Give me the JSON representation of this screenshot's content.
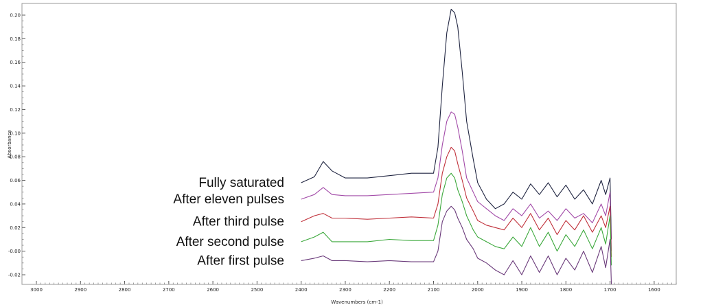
{
  "chart_data": {
    "type": "line",
    "title": "",
    "xlabel": "Wavenumbers (cm-1)",
    "ylabel": "Absorbance",
    "xlim": [
      3000,
      1550
    ],
    "ylim": [
      -0.03,
      0.21
    ],
    "x_reversed": true,
    "grid": false,
    "x_ticks": [
      "3000",
      "2900",
      "2800",
      "2700",
      "2600",
      "2500",
      "2400",
      "2300",
      "2200",
      "2100",
      "2000",
      "1900",
      "1800",
      "1700",
      "1600"
    ],
    "y_ticks": [
      "0.20",
      "0.18",
      "0.16",
      "0.14",
      "0.12",
      "0.10",
      "0.08",
      "0.06",
      "0.04",
      "0.02",
      "-0.00",
      "-0.02"
    ],
    "series": [
      {
        "name": "Fully saturated",
        "color": "#1f2440",
        "x": [
          2400,
          2370,
          2350,
          2330,
          2300,
          2250,
          2200,
          2150,
          2100,
          2090,
          2080,
          2070,
          2060,
          2052,
          2045,
          2035,
          2025,
          2010,
          2000,
          1980,
          1960,
          1940,
          1920,
          1900,
          1880,
          1860,
          1840,
          1820,
          1800,
          1780,
          1760,
          1740,
          1720,
          1710,
          1700,
          1697
        ],
        "y": [
          0.058,
          0.063,
          0.076,
          0.068,
          0.062,
          0.062,
          0.064,
          0.066,
          0.066,
          0.088,
          0.14,
          0.185,
          0.205,
          0.202,
          0.19,
          0.152,
          0.11,
          0.078,
          0.058,
          0.044,
          0.036,
          0.04,
          0.05,
          0.044,
          0.057,
          0.048,
          0.058,
          0.046,
          0.056,
          0.044,
          0.052,
          0.04,
          0.06,
          0.048,
          0.062,
          0.01
        ]
      },
      {
        "name": "After eleven pulses",
        "color": "#a24aa8",
        "x": [
          2400,
          2370,
          2350,
          2330,
          2300,
          2250,
          2200,
          2150,
          2100,
          2090,
          2080,
          2070,
          2060,
          2052,
          2045,
          2035,
          2025,
          2010,
          2000,
          1980,
          1960,
          1940,
          1920,
          1900,
          1880,
          1860,
          1840,
          1820,
          1800,
          1780,
          1760,
          1740,
          1720,
          1710,
          1700,
          1697
        ],
        "y": [
          0.044,
          0.048,
          0.054,
          0.048,
          0.047,
          0.047,
          0.048,
          0.049,
          0.05,
          0.062,
          0.09,
          0.11,
          0.118,
          0.116,
          0.105,
          0.085,
          0.062,
          0.05,
          0.042,
          0.036,
          0.03,
          0.026,
          0.036,
          0.03,
          0.04,
          0.028,
          0.034,
          0.026,
          0.036,
          0.028,
          0.032,
          0.024,
          0.04,
          0.03,
          0.05,
          0.0
        ]
      },
      {
        "name": "After third pulse",
        "color": "#c0303a",
        "x": [
          2400,
          2370,
          2350,
          2330,
          2300,
          2250,
          2200,
          2150,
          2100,
          2090,
          2080,
          2070,
          2060,
          2052,
          2045,
          2035,
          2025,
          2010,
          2000,
          1980,
          1960,
          1940,
          1920,
          1900,
          1880,
          1860,
          1840,
          1820,
          1800,
          1780,
          1760,
          1740,
          1720,
          1710,
          1700,
          1697
        ],
        "y": [
          0.025,
          0.03,
          0.032,
          0.028,
          0.028,
          0.027,
          0.028,
          0.029,
          0.028,
          0.04,
          0.066,
          0.08,
          0.088,
          0.085,
          0.074,
          0.06,
          0.045,
          0.034,
          0.026,
          0.022,
          0.02,
          0.018,
          0.028,
          0.02,
          0.032,
          0.018,
          0.028,
          0.014,
          0.026,
          0.018,
          0.03,
          0.016,
          0.03,
          0.02,
          0.038,
          -0.005
        ]
      },
      {
        "name": "After second pulse",
        "color": "#3ba83b",
        "x": [
          2400,
          2370,
          2350,
          2330,
          2300,
          2250,
          2200,
          2150,
          2100,
          2090,
          2080,
          2070,
          2060,
          2052,
          2045,
          2035,
          2025,
          2010,
          2000,
          1980,
          1960,
          1940,
          1920,
          1900,
          1880,
          1860,
          1840,
          1820,
          1800,
          1780,
          1760,
          1740,
          1720,
          1710,
          1700,
          1697
        ],
        "y": [
          0.008,
          0.012,
          0.016,
          0.008,
          0.008,
          0.008,
          0.01,
          0.009,
          0.009,
          0.022,
          0.048,
          0.062,
          0.066,
          0.062,
          0.052,
          0.042,
          0.03,
          0.018,
          0.012,
          0.008,
          0.004,
          0.002,
          0.012,
          0.004,
          0.02,
          0.004,
          0.016,
          0.0,
          0.014,
          0.004,
          0.018,
          0.002,
          0.02,
          0.006,
          0.03,
          -0.012
        ]
      },
      {
        "name": "After first pulse",
        "color": "#6a3a7a",
        "x": [
          2400,
          2370,
          2350,
          2330,
          2300,
          2250,
          2200,
          2150,
          2100,
          2090,
          2080,
          2070,
          2060,
          2052,
          2045,
          2035,
          2025,
          2010,
          2000,
          1980,
          1960,
          1940,
          1920,
          1900,
          1880,
          1860,
          1840,
          1820,
          1800,
          1780,
          1760,
          1740,
          1720,
          1710,
          1700,
          1697
        ],
        "y": [
          -0.008,
          -0.006,
          -0.004,
          -0.008,
          -0.008,
          -0.009,
          -0.008,
          -0.009,
          -0.009,
          0.0,
          0.025,
          0.034,
          0.038,
          0.035,
          0.028,
          0.02,
          0.01,
          0.002,
          -0.006,
          -0.01,
          -0.016,
          -0.02,
          -0.008,
          -0.02,
          -0.004,
          -0.018,
          -0.004,
          -0.02,
          -0.006,
          -0.016,
          0.0,
          -0.018,
          0.004,
          -0.014,
          0.01,
          -0.028
        ]
      }
    ]
  }
}
